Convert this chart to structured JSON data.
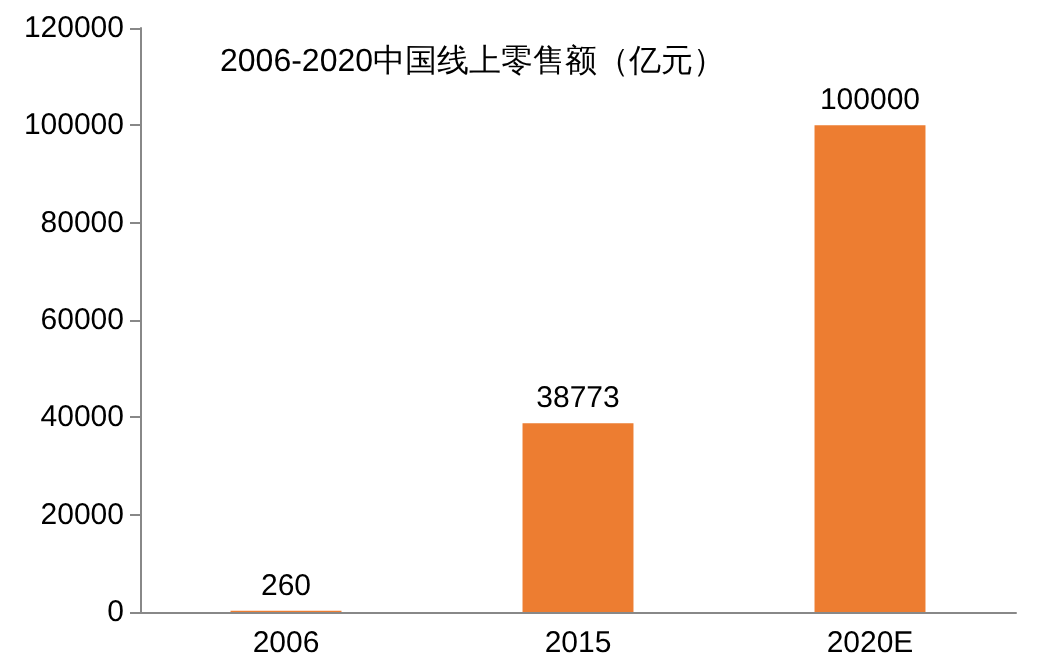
{
  "chart_data": {
    "type": "bar",
    "title": "2006-2020中国线上零售额（亿元）",
    "categories": [
      "2006",
      "2015",
      "2020E"
    ],
    "values": [
      260,
      38773,
      100000
    ],
    "color": "#ed7d31",
    "ylim": [
      0,
      120000
    ],
    "yticks": [
      0,
      20000,
      40000,
      60000,
      80000,
      100000,
      120000
    ],
    "grid": false,
    "data_labels": true
  }
}
